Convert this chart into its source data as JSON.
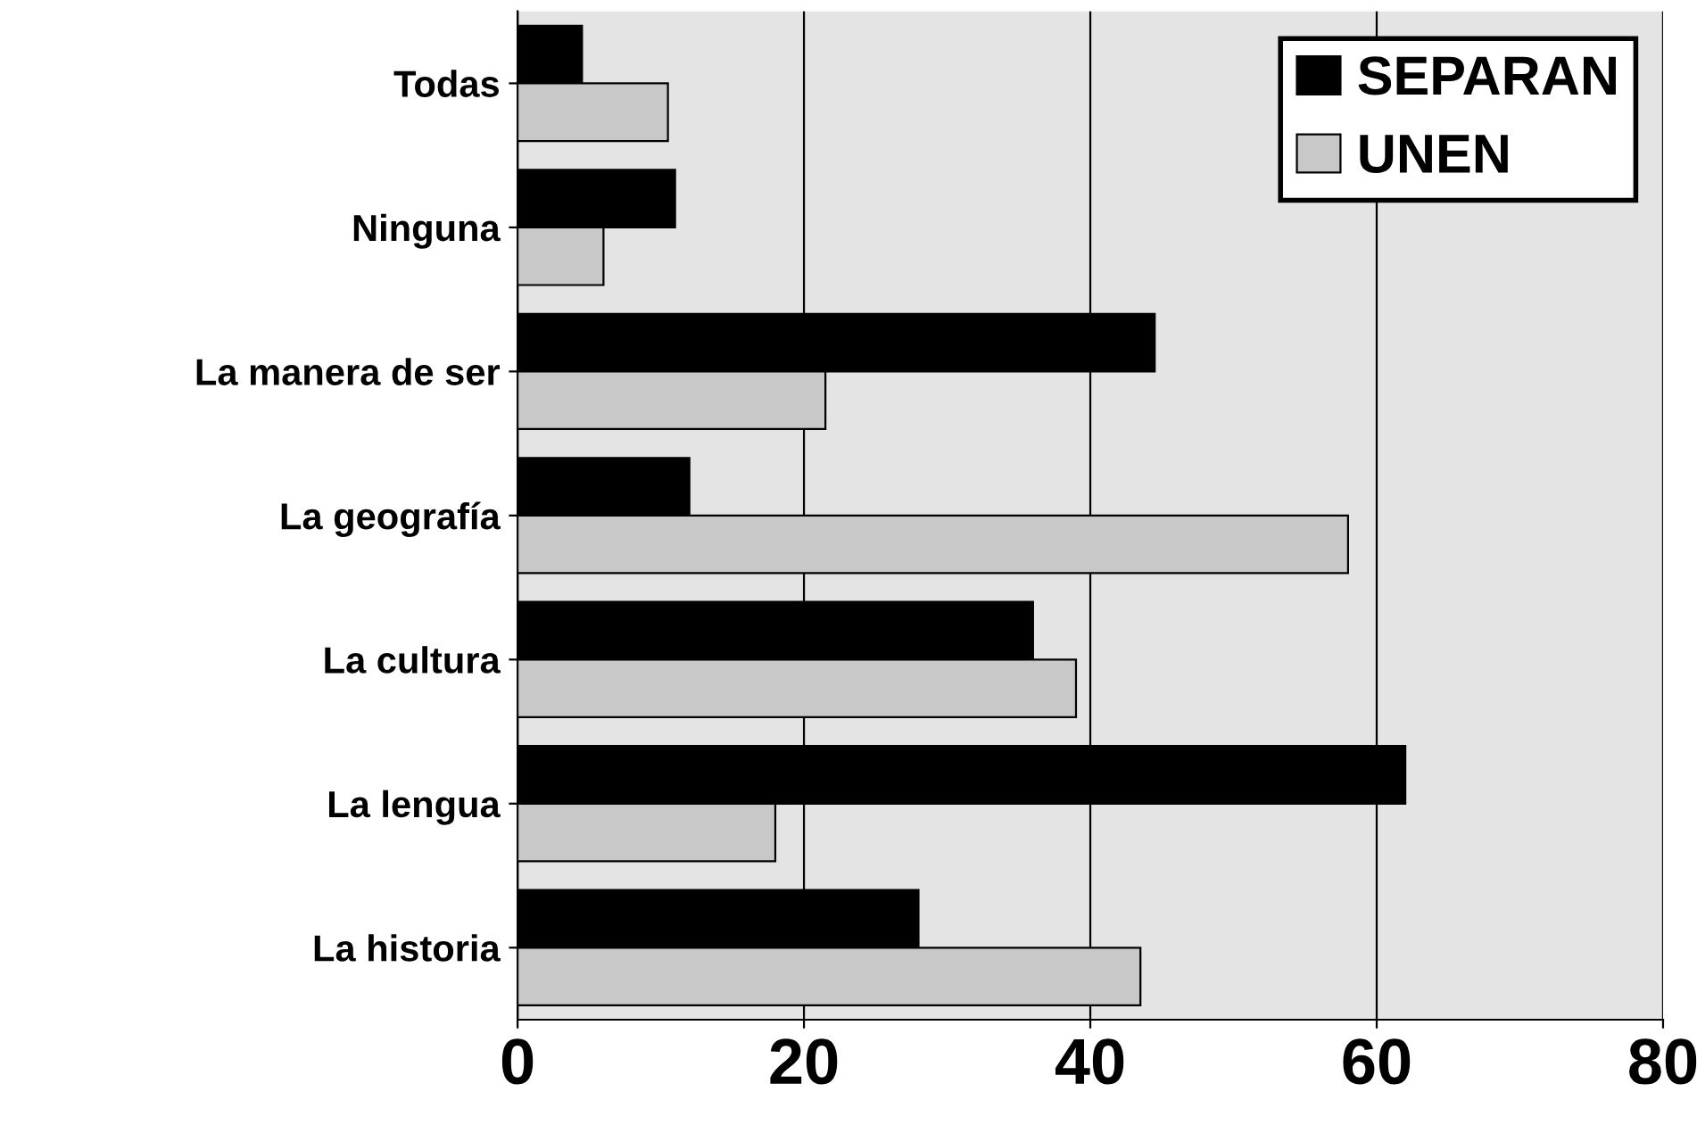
{
  "chart_data": {
    "type": "bar",
    "orientation": "horizontal",
    "categories": [
      "Todas",
      "Ninguna",
      "La manera de ser",
      "La geografía",
      "La cultura",
      "La lengua",
      "La historia"
    ],
    "series": [
      {
        "name": "SEPARAN",
        "color": "#000000",
        "values": [
          4.5,
          11,
          44.5,
          12,
          36,
          62,
          28
        ]
      },
      {
        "name": "UNEN",
        "color": "#c8c8c8",
        "values": [
          10.5,
          6,
          21.5,
          58,
          39,
          18,
          43.5
        ]
      }
    ],
    "xlim": [
      0,
      80
    ],
    "xticks": [
      0,
      20,
      40,
      60,
      80
    ],
    "grid": "x",
    "legend": "top right"
  }
}
